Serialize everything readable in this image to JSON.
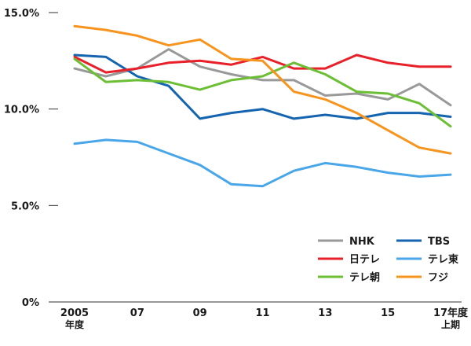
{
  "chart_data": {
    "type": "line",
    "title": "",
    "xlabel": "",
    "ylabel": "",
    "ylim": [
      0,
      15
    ],
    "grid": false,
    "legend_position": "bottom-right",
    "y_ticks": [
      "0%",
      "5.0%",
      "10.0%",
      "15.0%"
    ],
    "x_tick_labels": [
      {
        "main": "2005",
        "sub": "年度"
      },
      {
        "main": "07",
        "sub": ""
      },
      {
        "main": "09",
        "sub": ""
      },
      {
        "main": "11",
        "sub": ""
      },
      {
        "main": "13",
        "sub": ""
      },
      {
        "main": "15",
        "sub": ""
      },
      {
        "main": "17年度",
        "sub": "上期"
      }
    ],
    "x": [
      "2005",
      "2006",
      "2007",
      "2008",
      "2009",
      "2010",
      "2011",
      "2012",
      "2013",
      "2014",
      "2015",
      "2016",
      "2017上期"
    ],
    "series": [
      {
        "name": "NHK",
        "color": "#999999",
        "values": [
          12.1,
          11.7,
          12.1,
          13.1,
          12.2,
          11.8,
          11.5,
          11.5,
          10.7,
          10.8,
          10.5,
          11.3,
          10.2
        ]
      },
      {
        "name": "TBS",
        "color": "#1564b0",
        "values": [
          12.8,
          12.7,
          11.7,
          11.2,
          9.5,
          9.8,
          10.0,
          9.5,
          9.7,
          9.5,
          9.8,
          9.8,
          9.6
        ]
      },
      {
        "name": "日テレ",
        "color": "#e8202a",
        "values": [
          12.7,
          11.9,
          12.1,
          12.4,
          12.5,
          12.3,
          12.7,
          12.1,
          12.1,
          12.8,
          12.4,
          12.2,
          12.2
        ]
      },
      {
        "name": "テレ東",
        "color": "#49a6e8",
        "values": [
          8.2,
          8.4,
          8.3,
          7.7,
          7.1,
          6.1,
          6.0,
          6.8,
          7.2,
          7.0,
          6.7,
          6.5,
          6.6
        ]
      },
      {
        "name": "テレ朝",
        "color": "#6cbf34",
        "values": [
          12.6,
          11.4,
          11.5,
          11.4,
          11.0,
          11.5,
          11.7,
          12.4,
          11.8,
          10.9,
          10.8,
          10.3,
          9.1
        ]
      },
      {
        "name": "フジ",
        "color": "#f7941d",
        "values": [
          14.3,
          14.1,
          13.8,
          13.3,
          13.6,
          12.6,
          12.5,
          10.9,
          10.5,
          9.8,
          8.9,
          8.0,
          7.7
        ]
      }
    ]
  }
}
